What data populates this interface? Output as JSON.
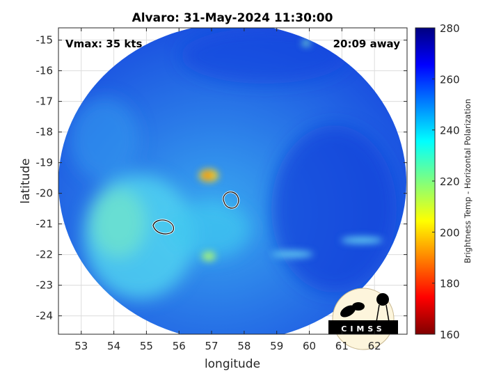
{
  "chart_data": {
    "type": "heatmap",
    "title": "Alvaro: 31-May-2024 11:30:00",
    "xlabel": "longitude",
    "ylabel": "latitude",
    "xlim": [
      52.3,
      63.0
    ],
    "ylim": [
      -24.6,
      -14.6
    ],
    "xticks": [
      53,
      54,
      55,
      56,
      57,
      58,
      59,
      60,
      61,
      62
    ],
    "yticks": [
      -15,
      -16,
      -17,
      -18,
      -19,
      -20,
      -21,
      -22,
      -23,
      -24
    ],
    "grid": true,
    "annotations": {
      "top_left": "Vmax: 35 kts",
      "top_right": "20:09 away"
    },
    "colorbar": {
      "label": "Brightness Temp - Horizontal Polarization",
      "range": [
        160,
        280
      ],
      "ticks": [
        280,
        260,
        240,
        220,
        200,
        180,
        160
      ],
      "colormap": "jet"
    },
    "features": [
      {
        "type": "cold-spot",
        "lon": 56.9,
        "lat": -19.4,
        "value": 205
      },
      {
        "type": "contour-loop",
        "lon": 57.6,
        "lat": -20.2
      },
      {
        "type": "contour-loop",
        "lon": 55.5,
        "lat": -21.1
      }
    ]
  },
  "logo": {
    "text": "CIMSS"
  }
}
